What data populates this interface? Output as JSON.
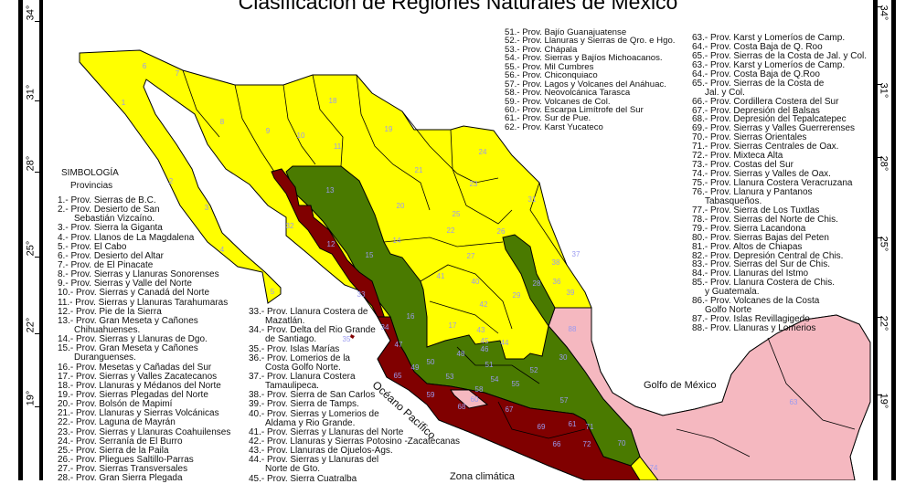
{
  "title": "Clasificación de Regiones Naturales de México",
  "latitude_labels": [
    "34°",
    "31°",
    "28°",
    "25°",
    "22°",
    "19°"
  ],
  "colors": {
    "desert_north": "#ffff00",
    "sierra_green": "#4a7a00",
    "pie_sierra_red": "#800000",
    "pink": "#f5b8c0",
    "numbers": "#9a9af0"
  },
  "legend": {
    "heading": "SIMBOLOGÍA",
    "subheading": "Provincias",
    "left": [
      {
        "label": "1.- Prov. Sierras de B.C."
      },
      {
        "label": "2.- Prov. Desierto de San",
        "cont": "Sebastián Vizcaíno."
      },
      {
        "label": "3.- Prov. Sierra la Giganta"
      },
      {
        "label": "4.- Prov. Llanos de La Magdalena"
      },
      {
        "label": "5.- Prov. El Cabo"
      },
      {
        "label": "6.- Prov. Desierto del Altar"
      },
      {
        "label": "7.- Prov. de El Pinacate"
      },
      {
        "label": "8.- Prov. Sierras y Llanuras Sonorenses"
      },
      {
        "label": "9.- Prov. Sierras y Valle del Norte"
      },
      {
        "label": "10.- Prov. Sierras y Canadá del Norte"
      },
      {
        "label": "11.- Prov. Sierras y Llanuras Tarahumaras"
      },
      {
        "label": "12.- Prov. Pie de la Sierra"
      },
      {
        "label": "13.- Prov. Gran Meseta y Cañones",
        "cont": "Chihuahuenses."
      },
      {
        "label": "14.- Prov. Sierras y Llanuras de Dgo."
      },
      {
        "label": "15.- Prov. Gran Meseta y Cañones",
        "cont": "Duranguenses."
      },
      {
        "label": "16.- Prov. Mesetas y Cañadas del Sur"
      },
      {
        "label": "17.- Prov. Sierras y Valles Zacatecanos"
      },
      {
        "label": "18.- Prov. Llanuras y Médanos del Norte"
      },
      {
        "label": "19.- Prov. Sierras Plegadas del Norte"
      },
      {
        "label": "20.- Prov. Bolsón de Mapimí"
      },
      {
        "label": "21.- Prov. Llanuras y Sierras Volcánicas"
      },
      {
        "label": "22.- Prov. Laguna de Mayrán"
      },
      {
        "label": "23.- Prov. Sierras y Llanuras Coahuilenses"
      },
      {
        "label": "24.- Prov. Serranía de El Burro"
      },
      {
        "label": "25.- Prov. Sierra de la Paila"
      },
      {
        "label": "26.- Prov. Pliegues Saltillo-Parras"
      },
      {
        "label": "27.- Prov. Sierras Transversales"
      },
      {
        "label": "28.- Prov. Gran Sierra Plegada"
      }
    ],
    "middle": [
      {
        "label": "33.- Prov. Llanura Costera de",
        "cont": "Mazatlán."
      },
      {
        "label": "34.- Prov. Delta del Rio Grande",
        "cont": "de Santiago."
      },
      {
        "label": "35.- Prov. Islas Marías"
      },
      {
        "label": "36.- Prov. Lomerios de la",
        "cont": "Costa Golfo Norte."
      },
      {
        "label": "37.- Prov. Llanura Costera",
        "cont": "Tamaulipeca."
      },
      {
        "label": "38.- Prov. Sierra de San Carlos"
      },
      {
        "label": "39.- Prov. Sierra de Tamps."
      },
      {
        "label": "40.- Prov. Sierras y Lomerios de",
        "cont": "Aldama y Rio Grande."
      },
      {
        "label": "41.- Prov. Sierras y Llanuras del Norte"
      },
      {
        "label": "42.- Prov. Llanuras y Sierras Potosino -Zacatecanas"
      },
      {
        "label": "43.- Prov. Llanuras de Ojuelos-Ags."
      },
      {
        "label": "44.- Prov. Sierras y Llanuras del",
        "cont": "Norte de Gto."
      },
      {
        "label": "45.- Prov. Sierra Cuatralba"
      }
    ],
    "top": [
      {
        "label": "51.- Prov. Bajío Guanajuatense"
      },
      {
        "label": "52.- Prov. Llanuras y Sierras de Qro. e Hgo."
      },
      {
        "label": "53.- Prov. Chápala"
      },
      {
        "label": "54.- Prov. Sierras y Bajíos Michoacanos."
      },
      {
        "label": "55.- Prov. Mil Cumbres"
      },
      {
        "label": "56.- Prov. Chiconquiaco"
      },
      {
        "label": "57.- Prov. Lagos y Volcanes del Anáhuac."
      },
      {
        "label": "58.- Prov. Neovolcánica Tarasca"
      },
      {
        "label": "59.- Prov. Volcanes de Col."
      },
      {
        "label": "60.- Prov. Escarpa Limítrofe del Sur"
      },
      {
        "label": "61.- Prov. Sur de Pue."
      },
      {
        "label": "62.- Prov. Karst Yucateco"
      }
    ],
    "right": [
      {
        "label": "63.- Prov. Karst y Lomeríos de Camp."
      },
      {
        "label": "64.- Prov. Costa Baja de Q. Roo"
      },
      {
        "label": "65.- Prov. Sierras de la Costa de Jal. y Col."
      },
      {
        "label": "63.- Prov. Karst y Lomeríos de Camp."
      },
      {
        "label": "64.- Prov. Costa Baja de Q.Roo"
      },
      {
        "label": "65.- Prov. Sierras de la Costa de",
        "cont": "Jal. y Col."
      },
      {
        "label": "66.- Prov. Cordillera Costera del Sur"
      },
      {
        "label": "67.- Prov. Depresión del Balsas"
      },
      {
        "label": "68.- Prov. Depresión del Tepalcatepec"
      },
      {
        "label": "69.- Prov. Sierras y Valles Guerrerenses"
      },
      {
        "label": "70.- Prov. Sierras Orientales"
      },
      {
        "label": "71.- Prov. Sierras Centrales de Oax."
      },
      {
        "label": "72.- Prov. Mixteca Alta"
      },
      {
        "label": "73.- Prov. Costas del Sur"
      },
      {
        "label": "74.- Prov. Sierras y Valles de Oax."
      },
      {
        "label": "75.- Prov. Llanura Costera Veracruzana"
      },
      {
        "label": "76.- Prov. Llanura y Pantanos",
        "cont": "Tabasqueños."
      },
      {
        "label": "77.- Prov. Sierra de Los Tuxtlas"
      },
      {
        "label": "78.- Prov. Sierras del Norte de Chis."
      },
      {
        "label": "79.- Prov. Sierra Lacandona"
      },
      {
        "label": "80.- Prov. Sierras Bajas del Peten"
      },
      {
        "label": "81.- Prov. Altos de Chiapas"
      },
      {
        "label": "82.- Prov. Depresión Central de Chis."
      },
      {
        "label": "83.- Prov. Sierras del Sur de Chis."
      },
      {
        "label": "84.- Prov. Llanuras del Istmo"
      },
      {
        "label": "85.- Prov. Llanura Costera de Chis.",
        "cont": "y Guatemala."
      },
      {
        "label": "86.- Prov. Volcanes de la Costa",
        "cont": "Golfo Norte"
      },
      {
        "label": "87.- Prov. Islas Revillagigedo"
      },
      {
        "label": "88.- Prov. Llanuras y Lomerios"
      }
    ],
    "climate_heading": "Zona climática"
  },
  "map": {
    "ocean_label": "Océano Pacífico",
    "gulf_label": "Golfo de México",
    "region_numbers": [
      "1",
      "2",
      "3",
      "4",
      "5",
      "6",
      "7",
      "8",
      "9",
      "10",
      "11",
      "12",
      "13",
      "14",
      "15",
      "16",
      "17",
      "18",
      "19",
      "20",
      "21",
      "22",
      "23",
      "24",
      "25",
      "26",
      "27",
      "28",
      "29",
      "30",
      "31",
      "32",
      "33",
      "34",
      "35",
      "36",
      "37",
      "38",
      "39",
      "40",
      "41",
      "42",
      "43",
      "44",
      "45",
      "46",
      "47",
      "48",
      "49",
      "50",
      "51",
      "52",
      "53",
      "54",
      "55",
      "57",
      "58",
      "59",
      "60",
      "61",
      "63",
      "65",
      "66",
      "67",
      "68",
      "69",
      "70",
      "71",
      "72",
      "74",
      "88"
    ]
  }
}
